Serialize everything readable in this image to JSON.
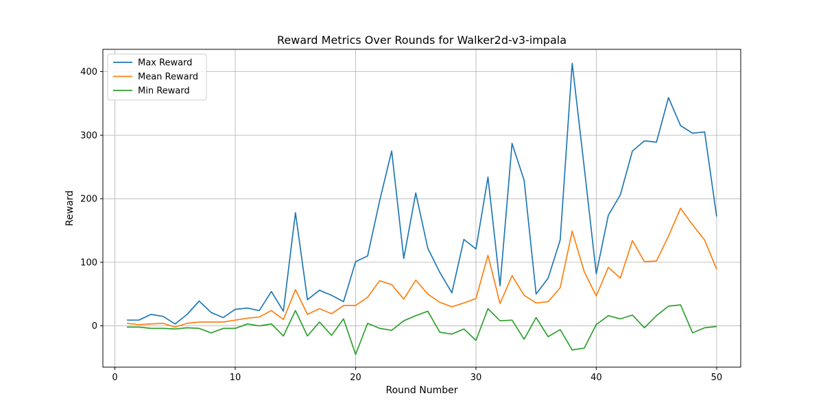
{
  "chart_data": {
    "type": "line",
    "title": "Reward Metrics Over Rounds for Walker2d-v3-impala",
    "xlabel": "Round Number",
    "ylabel": "Reward",
    "xlim": [
      -1,
      52
    ],
    "ylim": [
      -65,
      435
    ],
    "xticks": [
      0,
      10,
      20,
      30,
      40,
      50
    ],
    "yticks": [
      0,
      100,
      200,
      300,
      400
    ],
    "grid": true,
    "legend": "top-left",
    "x": [
      1,
      2,
      3,
      4,
      5,
      6,
      7,
      8,
      9,
      10,
      11,
      12,
      13,
      14,
      15,
      16,
      17,
      18,
      19,
      20,
      21,
      22,
      23,
      24,
      25,
      26,
      27,
      28,
      29,
      30,
      31,
      32,
      33,
      34,
      35,
      36,
      37,
      38,
      39,
      40,
      41,
      42,
      43,
      44,
      45,
      46,
      47,
      48,
      49,
      50
    ],
    "series": [
      {
        "name": "Max Reward",
        "color": "#1f77b4",
        "values": [
          9,
          9,
          18,
          15,
          3,
          18,
          39,
          21,
          13,
          26,
          28,
          24,
          54,
          23,
          178,
          41,
          56,
          48,
          38,
          101,
          110,
          197,
          275,
          106,
          209,
          122,
          84,
          52,
          136,
          121,
          234,
          63,
          287,
          229,
          50,
          75,
          135,
          413,
          249,
          82,
          174,
          206,
          275,
          291,
          289,
          359,
          315,
          303,
          305,
          172
        ]
      },
      {
        "name": "Mean Reward",
        "color": "#ff7f0e",
        "values": [
          4,
          2,
          3,
          4,
          -2,
          4,
          6,
          6,
          6,
          9,
          12,
          14,
          24,
          10,
          57,
          18,
          27,
          19,
          32,
          32,
          45,
          71,
          65,
          42,
          72,
          50,
          37,
          30,
          36,
          43,
          111,
          35,
          79,
          48,
          36,
          38,
          60,
          149,
          85,
          47,
          92,
          75,
          134,
          101,
          102,
          141,
          185,
          159,
          135,
          89
        ]
      },
      {
        "name": "Min Reward",
        "color": "#2ca02c",
        "values": [
          -2,
          -2,
          -4,
          -4,
          -5,
          -3,
          -4,
          -11,
          -4,
          -4,
          3,
          0,
          3,
          -16,
          24,
          -16,
          6,
          -15,
          11,
          -45,
          4,
          -4,
          -7,
          8,
          16,
          23,
          -10,
          -13,
          -5,
          -23,
          27,
          8,
          9,
          -21,
          13,
          -17,
          -6,
          -38,
          -35,
          2,
          16,
          11,
          17,
          -3,
          16,
          31,
          33,
          -11,
          -3,
          -1
        ]
      }
    ]
  }
}
